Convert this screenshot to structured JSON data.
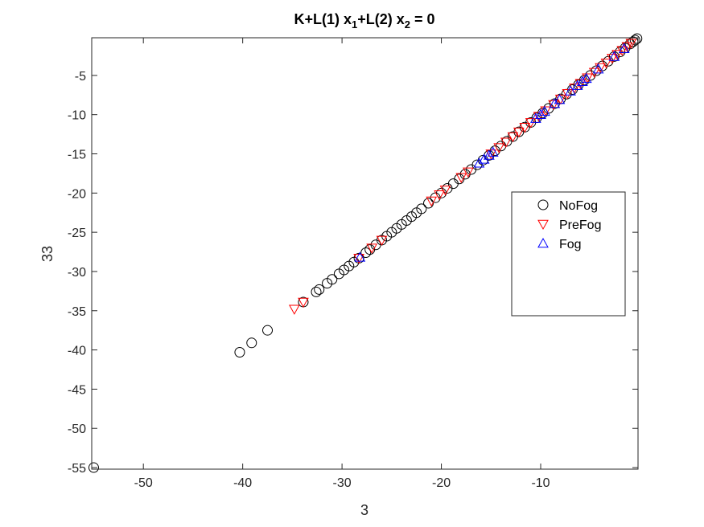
{
  "chart_data": {
    "type": "scatter",
    "title": "K+L(1) x",
    "title_sub1": "1",
    "title_mid": "+L(2) x",
    "title_sub2": "2",
    "title_end": " = 0",
    "xlabel": "3",
    "ylabel": "33",
    "xlim": [
      -55.2,
      -0.2
    ],
    "ylim": [
      -55.2,
      -0.2
    ],
    "xticks": [
      -50,
      -40,
      -30,
      -20,
      -10
    ],
    "yticks": [
      -55,
      -50,
      -45,
      -40,
      -35,
      -30,
      -25,
      -20,
      -15,
      -10,
      -5
    ],
    "legend_position": "right-middle",
    "series": [
      {
        "name": "NoFog",
        "marker": "circle",
        "color": "#000000",
        "points": [
          [
            -55.0,
            -55.0
          ],
          [
            -40.3,
            -40.3
          ],
          [
            -39.1,
            -39.1
          ],
          [
            -37.5,
            -37.5
          ],
          [
            -33.9,
            -33.9
          ],
          [
            -32.6,
            -32.6
          ],
          [
            -32.3,
            -32.3
          ],
          [
            -31.5,
            -31.5
          ],
          [
            -31.0,
            -31.0
          ],
          [
            -30.3,
            -30.3
          ],
          [
            -29.8,
            -29.8
          ],
          [
            -29.3,
            -29.3
          ],
          [
            -28.8,
            -28.8
          ],
          [
            -28.3,
            -28.3
          ],
          [
            -27.6,
            -27.6
          ],
          [
            -27.2,
            -27.2
          ],
          [
            -26.6,
            -26.6
          ],
          [
            -26.0,
            -26.0
          ],
          [
            -25.5,
            -25.5
          ],
          [
            -25.0,
            -25.0
          ],
          [
            -24.5,
            -24.5
          ],
          [
            -24.0,
            -24.0
          ],
          [
            -23.5,
            -23.5
          ],
          [
            -23.0,
            -23.0
          ],
          [
            -22.5,
            -22.5
          ],
          [
            -22.0,
            -22.0
          ],
          [
            -21.3,
            -21.3
          ],
          [
            -20.6,
            -20.6
          ],
          [
            -20.0,
            -20.0
          ],
          [
            -19.4,
            -19.4
          ],
          [
            -18.8,
            -18.8
          ],
          [
            -18.2,
            -18.2
          ],
          [
            -17.6,
            -17.6
          ],
          [
            -17.0,
            -17.0
          ],
          [
            -16.4,
            -16.4
          ],
          [
            -15.8,
            -15.8
          ],
          [
            -15.2,
            -15.2
          ],
          [
            -14.6,
            -14.6
          ],
          [
            -14.0,
            -14.0
          ],
          [
            -13.4,
            -13.4
          ],
          [
            -12.8,
            -12.8
          ],
          [
            -12.2,
            -12.2
          ],
          [
            -11.6,
            -11.6
          ],
          [
            -11.0,
            -11.0
          ],
          [
            -10.4,
            -10.4
          ],
          [
            -9.8,
            -9.8
          ],
          [
            -9.2,
            -9.2
          ],
          [
            -8.6,
            -8.6
          ],
          [
            -8.0,
            -8.0
          ],
          [
            -7.4,
            -7.4
          ],
          [
            -6.8,
            -6.8
          ],
          [
            -6.2,
            -6.2
          ],
          [
            -5.6,
            -5.6
          ],
          [
            -5.0,
            -5.0
          ],
          [
            -4.4,
            -4.4
          ],
          [
            -3.8,
            -3.8
          ],
          [
            -3.2,
            -3.2
          ],
          [
            -2.6,
            -2.6
          ],
          [
            -2.0,
            -2.0
          ],
          [
            -1.5,
            -1.5
          ],
          [
            -1.0,
            -1.0
          ],
          [
            -0.7,
            -0.7
          ],
          [
            -0.5,
            -0.5
          ],
          [
            -0.3,
            -0.3
          ]
        ]
      },
      {
        "name": "PreFog",
        "marker": "triangle-down",
        "color": "#ff0000",
        "points": [
          [
            -34.8,
            -34.8
          ],
          [
            -33.9,
            -33.9
          ],
          [
            -28.3,
            -28.3
          ],
          [
            -27.0,
            -27.0
          ],
          [
            -26.0,
            -26.0
          ],
          [
            -21.0,
            -21.0
          ],
          [
            -20.2,
            -20.2
          ],
          [
            -19.6,
            -19.6
          ],
          [
            -18.0,
            -18.0
          ],
          [
            -17.3,
            -17.3
          ],
          [
            -15.0,
            -15.0
          ],
          [
            -14.2,
            -14.2
          ],
          [
            -13.5,
            -13.5
          ],
          [
            -12.8,
            -12.8
          ],
          [
            -12.2,
            -12.2
          ],
          [
            -11.6,
            -11.6
          ],
          [
            -11.0,
            -11.0
          ],
          [
            -10.2,
            -10.2
          ],
          [
            -9.5,
            -9.5
          ],
          [
            -8.7,
            -8.7
          ],
          [
            -8.0,
            -8.0
          ],
          [
            -7.3,
            -7.3
          ],
          [
            -6.6,
            -6.6
          ],
          [
            -6.0,
            -6.0
          ],
          [
            -5.3,
            -5.3
          ],
          [
            -4.6,
            -4.6
          ],
          [
            -4.0,
            -4.0
          ],
          [
            -3.4,
            -3.4
          ],
          [
            -2.8,
            -2.8
          ],
          [
            -2.3,
            -2.3
          ],
          [
            -1.8,
            -1.8
          ],
          [
            -1.3,
            -1.3
          ],
          [
            -0.9,
            -0.9
          ]
        ]
      },
      {
        "name": "Fog",
        "marker": "triangle-up",
        "color": "#0000ff",
        "points": [
          [
            -28.2,
            -28.2
          ],
          [
            -16.2,
            -16.2
          ],
          [
            -15.7,
            -15.7
          ],
          [
            -15.2,
            -15.2
          ],
          [
            -14.8,
            -14.8
          ],
          [
            -10.5,
            -10.5
          ],
          [
            -10.0,
            -10.0
          ],
          [
            -9.6,
            -9.6
          ],
          [
            -8.6,
            -8.6
          ],
          [
            -8.1,
            -8.1
          ],
          [
            -7.0,
            -7.0
          ],
          [
            -6.3,
            -6.3
          ],
          [
            -5.8,
            -5.8
          ],
          [
            -5.4,
            -5.4
          ],
          [
            -4.2,
            -4.2
          ],
          [
            -2.6,
            -2.6
          ],
          [
            -1.6,
            -1.6
          ]
        ]
      }
    ]
  }
}
